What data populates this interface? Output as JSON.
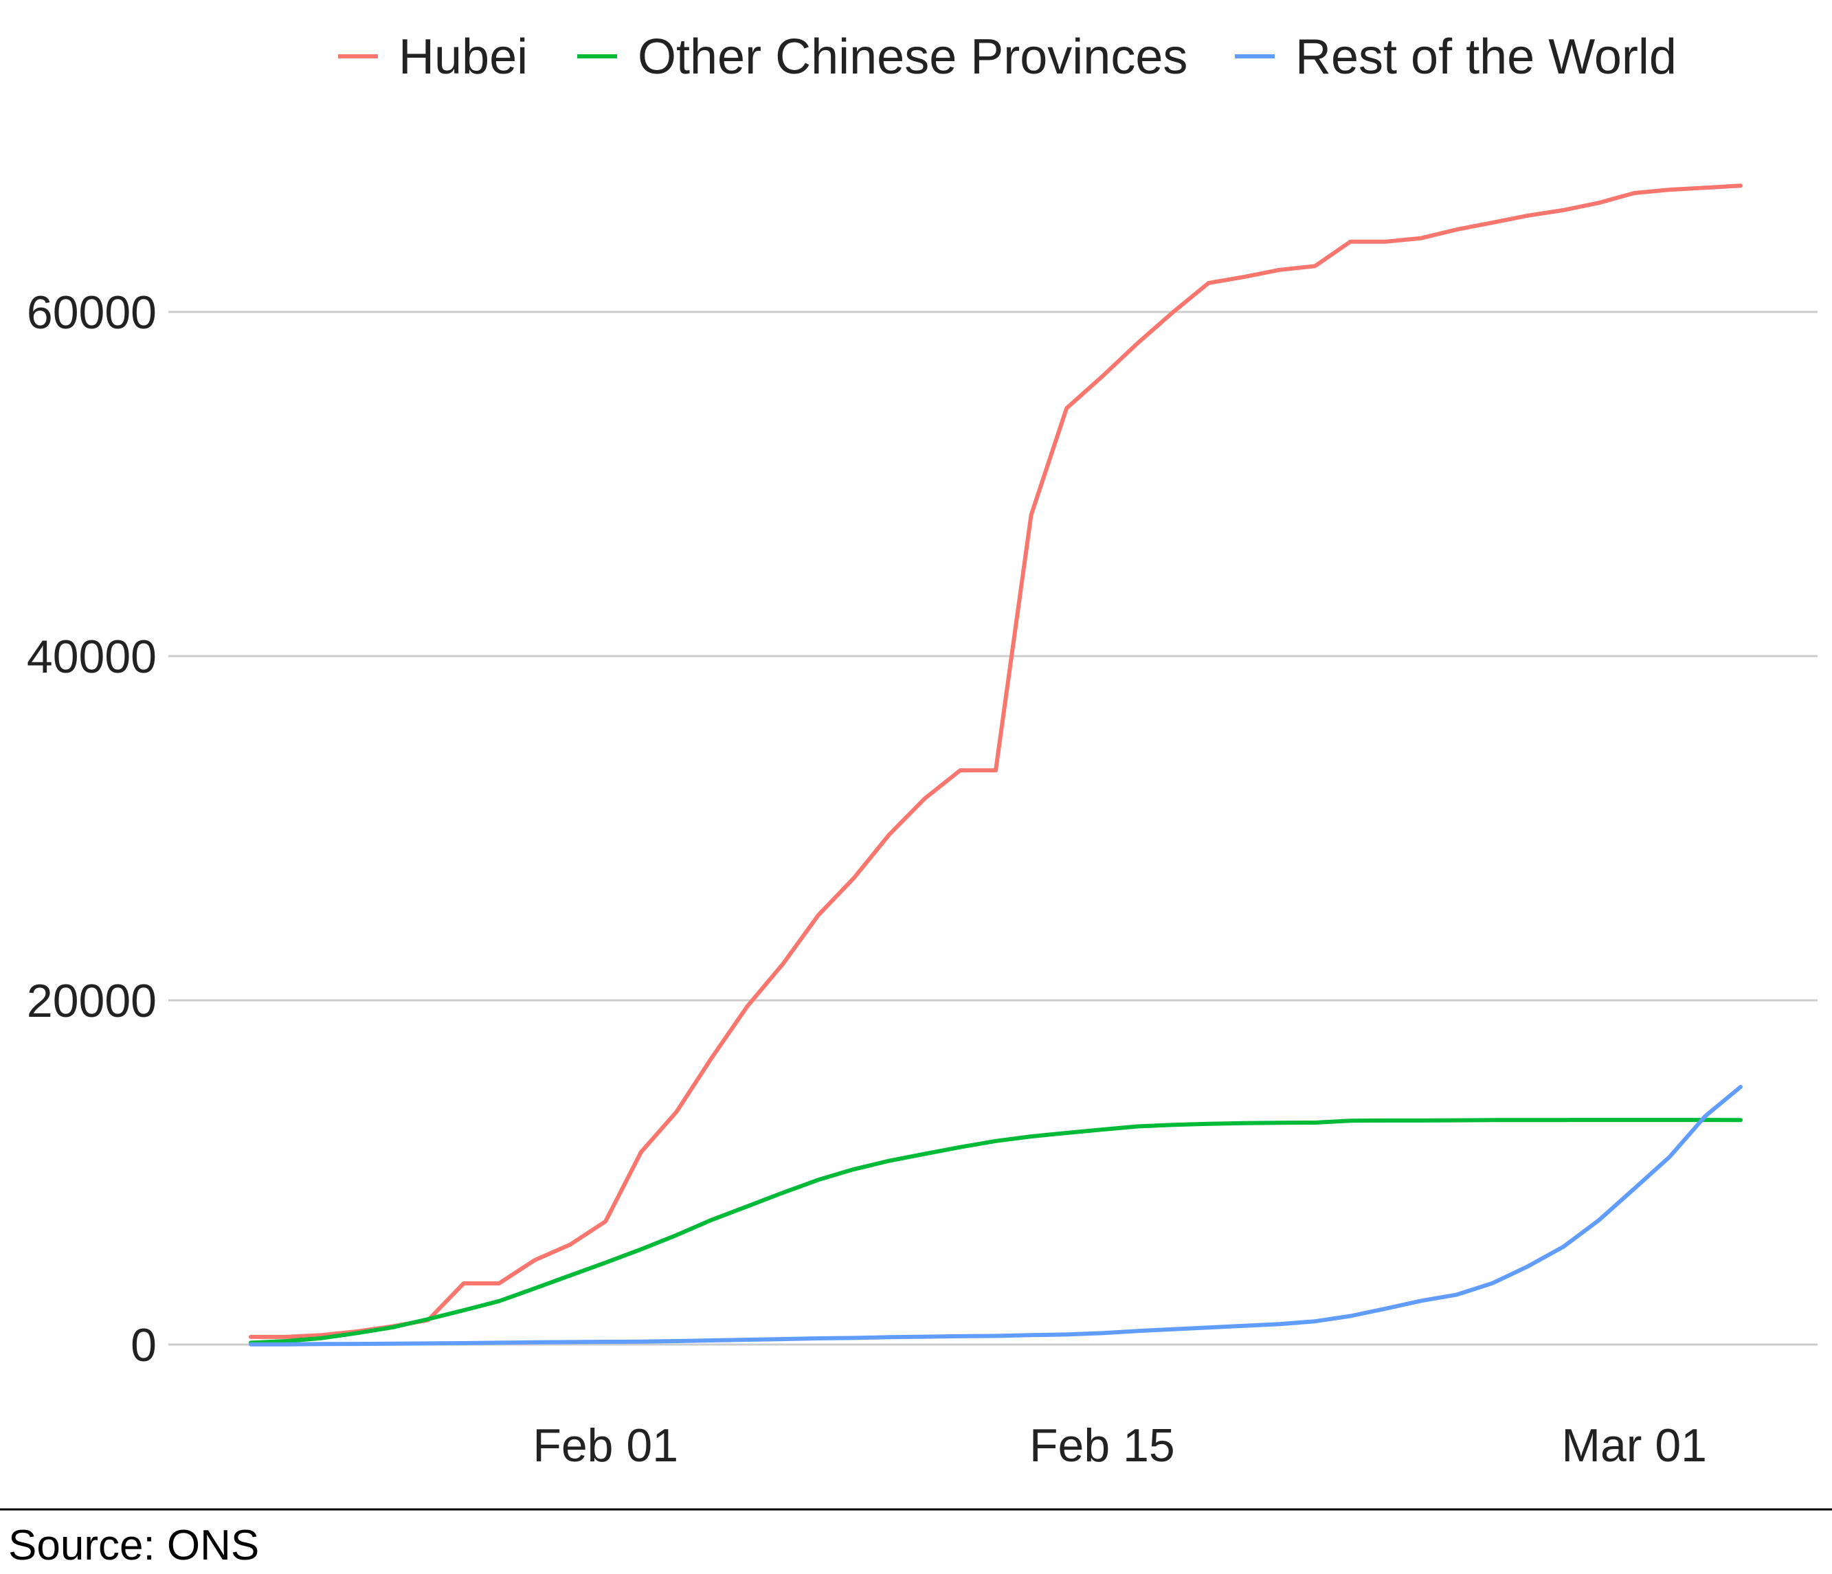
{
  "chart_data": {
    "type": "line",
    "title": "",
    "xlabel": "",
    "ylabel": "",
    "x": [
      "2020-01-22",
      "2020-01-23",
      "2020-01-24",
      "2020-01-25",
      "2020-01-26",
      "2020-01-27",
      "2020-01-28",
      "2020-01-29",
      "2020-01-30",
      "2020-01-31",
      "2020-02-01",
      "2020-02-02",
      "2020-02-03",
      "2020-02-04",
      "2020-02-05",
      "2020-02-06",
      "2020-02-07",
      "2020-02-08",
      "2020-02-09",
      "2020-02-10",
      "2020-02-11",
      "2020-02-12",
      "2020-02-13",
      "2020-02-14",
      "2020-02-15",
      "2020-02-16",
      "2020-02-17",
      "2020-02-18",
      "2020-02-19",
      "2020-02-20",
      "2020-02-21",
      "2020-02-22",
      "2020-02-23",
      "2020-02-24",
      "2020-02-25",
      "2020-02-26",
      "2020-02-27",
      "2020-02-28",
      "2020-02-29",
      "2020-03-01",
      "2020-03-02",
      "2020-03-03",
      "2020-03-04"
    ],
    "xticks": [
      {
        "date": "2020-02-01",
        "label": "Feb 01"
      },
      {
        "date": "2020-02-15",
        "label": "Feb 15"
      },
      {
        "date": "2020-03-01",
        "label": "Mar 01"
      }
    ],
    "yticks": [
      0,
      20000,
      40000,
      60000
    ],
    "ylim": [
      -5000,
      70000
    ],
    "grid": "horizontal",
    "legend_position": "top",
    "series": [
      {
        "name": "Hubei",
        "color": "#F8766D",
        "values": [
          444,
          444,
          549,
          761,
          1058,
          1423,
          3554,
          3554,
          4903,
          5806,
          7153,
          11177,
          13522,
          16678,
          19665,
          22112,
          24953,
          27100,
          29631,
          31728,
          33366,
          33366,
          48206,
          54406,
          56249,
          58182,
          59989,
          61682,
          62031,
          62442,
          62662,
          64084,
          64084,
          64287,
          64786,
          65187,
          65596,
          65914,
          66337,
          66907,
          67103,
          67217,
          67332
        ]
      },
      {
        "name": "Other Chinese Provinces",
        "color": "#00BA38",
        "values": [
          104,
          199,
          371,
          665,
          1003,
          1478,
          1993,
          2524,
          3261,
          4013,
          4759,
          5532,
          6355,
          7248,
          8031,
          8822,
          9569,
          10183,
          10676,
          11078,
          11471,
          11826,
          12093,
          12297,
          12493,
          12674,
          12763,
          12827,
          12864,
          12882,
          12893,
          13001,
          13016,
          13018,
          13031,
          13041,
          13043,
          13047,
          13049,
          13051,
          13049,
          13049,
          13047
        ]
      },
      {
        "name": "Rest of the World",
        "color": "#619CFF",
        "values": [
          7,
          11,
          26,
          34,
          49,
          62,
          81,
          103,
          126,
          143,
          159,
          172,
          198,
          238,
          278,
          314,
          358,
          382,
          427,
          457,
          484,
          499,
          545,
          583,
          661,
          788,
          889,
          990,
          1087,
          1187,
          1349,
          1657,
          2089,
          2541,
          2899,
          3559,
          4539,
          5678,
          7217,
          9053,
          10911,
          13264,
          14970
        ]
      }
    ]
  },
  "source": {
    "label": "Source: ONS"
  }
}
